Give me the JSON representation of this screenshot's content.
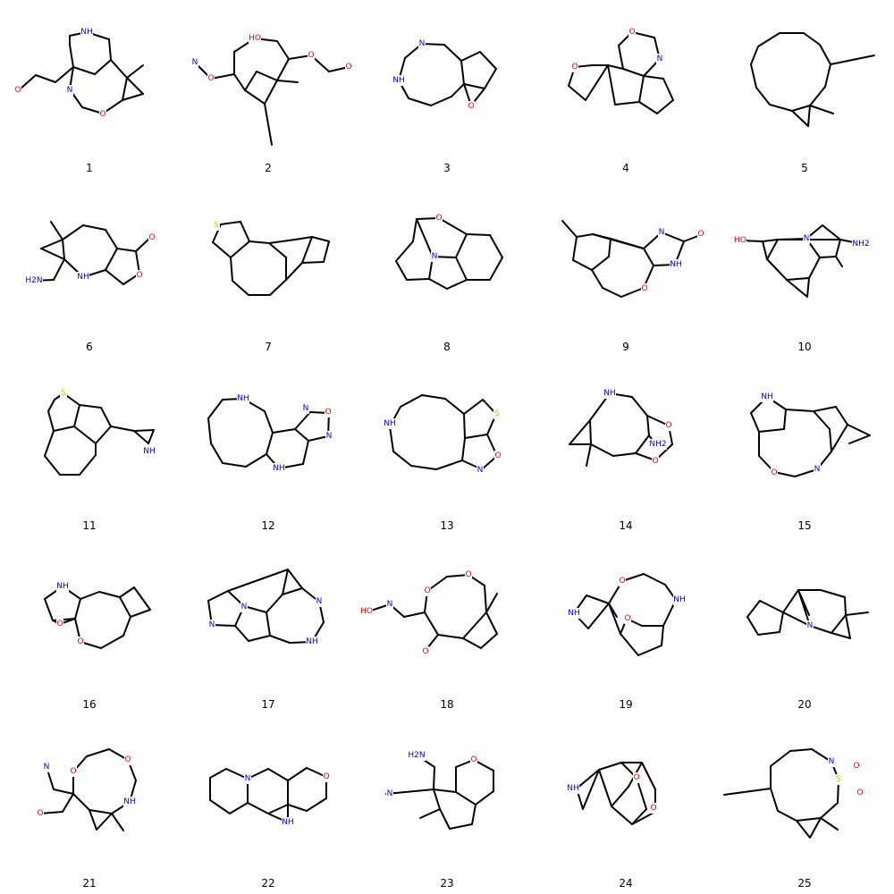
{
  "title": "",
  "molecules": [
    {
      "label": "1",
      "atoms": [
        {
          "t": "NH",
          "c": "N"
        },
        {
          "t": "O",
          "c": "O"
        },
        {
          "t": "N",
          "c": "N"
        },
        {
          "t": "O",
          "c": "O"
        }
      ]
    },
    {
      "label": "2",
      "atoms": [
        {
          "t": "HO",
          "c": "O"
        },
        {
          "t": "N",
          "c": "N"
        },
        {
          "t": "O",
          "c": "O"
        },
        {
          "t": "O",
          "c": "O"
        },
        {
          "t": "O",
          "c": "O"
        }
      ]
    },
    {
      "label": "3",
      "atoms": [
        {
          "t": "N",
          "c": "N"
        },
        {
          "t": "NH",
          "c": "N"
        },
        {
          "t": "O",
          "c": "O"
        }
      ]
    },
    {
      "label": "4",
      "atoms": [
        {
          "t": "O",
          "c": "O"
        },
        {
          "t": "N",
          "c": "N"
        },
        {
          "t": "O",
          "c": "O"
        }
      ]
    },
    {
      "label": "5",
      "atoms": []
    },
    {
      "label": "6",
      "atoms": [
        {
          "t": "O",
          "c": "O"
        },
        {
          "t": "O",
          "c": "O"
        },
        {
          "t": "NH",
          "c": "N"
        },
        {
          "t": "H2N",
          "c": "N"
        }
      ]
    },
    {
      "label": "7",
      "atoms": [
        {
          "t": "S",
          "c": "S"
        }
      ]
    },
    {
      "label": "8",
      "atoms": [
        {
          "t": "O",
          "c": "O"
        },
        {
          "t": "N",
          "c": "N"
        }
      ]
    },
    {
      "label": "9",
      "atoms": [
        {
          "t": "N",
          "c": "N"
        },
        {
          "t": "O",
          "c": "O"
        },
        {
          "t": "NH",
          "c": "N"
        },
        {
          "t": "O",
          "c": "O"
        }
      ]
    },
    {
      "label": "10",
      "atoms": [
        {
          "t": "HO",
          "c": "O"
        },
        {
          "t": "N",
          "c": "N"
        },
        {
          "t": "NH2",
          "c": "N"
        }
      ]
    },
    {
      "label": "11",
      "atoms": [
        {
          "t": "S",
          "c": "S"
        },
        {
          "t": "NH",
          "c": "N"
        }
      ]
    },
    {
      "label": "12",
      "atoms": [
        {
          "t": "NH",
          "c": "N"
        },
        {
          "t": "N",
          "c": "N"
        },
        {
          "t": "O",
          "c": "O"
        },
        {
          "t": "N",
          "c": "N"
        },
        {
          "t": "NH",
          "c": "N"
        }
      ]
    },
    {
      "label": "13",
      "atoms": [
        {
          "t": "NH",
          "c": "N"
        },
        {
          "t": "S",
          "c": "S"
        },
        {
          "t": "N",
          "c": "N"
        },
        {
          "t": "O",
          "c": "O"
        }
      ]
    },
    {
      "label": "14",
      "atoms": [
        {
          "t": "NH",
          "c": "N"
        },
        {
          "t": "O",
          "c": "O"
        },
        {
          "t": "NH2",
          "c": "N"
        },
        {
          "t": "O",
          "c": "O"
        }
      ]
    },
    {
      "label": "15",
      "atoms": [
        {
          "t": "NH",
          "c": "N"
        },
        {
          "t": "O",
          "c": "O"
        },
        {
          "t": "N",
          "c": "N"
        }
      ]
    },
    {
      "label": "16",
      "atoms": [
        {
          "t": "NH",
          "c": "N"
        },
        {
          "t": "O",
          "c": "O"
        },
        {
          "t": "O",
          "c": "O"
        }
      ]
    },
    {
      "label": "17",
      "atoms": [
        {
          "t": "N",
          "c": "N"
        },
        {
          "t": "N",
          "c": "N"
        },
        {
          "t": "N",
          "c": "N"
        },
        {
          "t": "NH",
          "c": "N"
        }
      ]
    },
    {
      "label": "18",
      "atoms": [
        {
          "t": "O",
          "c": "O"
        },
        {
          "t": "HO",
          "c": "O"
        },
        {
          "t": "N",
          "c": "N"
        },
        {
          "t": "O",
          "c": "O"
        },
        {
          "t": "O",
          "c": "O"
        }
      ]
    },
    {
      "label": "19",
      "atoms": [
        {
          "t": "O",
          "c": "O"
        },
        {
          "t": "NH",
          "c": "N"
        },
        {
          "t": "NH",
          "c": "N"
        },
        {
          "t": "O",
          "c": "O"
        }
      ]
    },
    {
      "label": "20",
      "atoms": [
        {
          "t": "N",
          "c": "N"
        }
      ]
    },
    {
      "label": "21",
      "atoms": [
        {
          "t": "O",
          "c": "O"
        },
        {
          "t": "N",
          "c": "N"
        },
        {
          "t": "O",
          "c": "O"
        },
        {
          "t": "NH",
          "c": "N"
        },
        {
          "t": "O",
          "c": "O"
        }
      ]
    },
    {
      "label": "22",
      "atoms": [
        {
          "t": "N",
          "c": "N"
        },
        {
          "t": "O",
          "c": "O"
        },
        {
          "t": "NH",
          "c": "N"
        }
      ]
    },
    {
      "label": "23",
      "atoms": [
        {
          "t": "H2N",
          "c": "N"
        },
        {
          "t": "O",
          "c": "O"
        },
        {
          "t": "N",
          "c": "N"
        }
      ]
    },
    {
      "label": "24",
      "atoms": [
        {
          "t": "NH",
          "c": "N"
        },
        {
          "t": "O",
          "c": "O"
        },
        {
          "t": "O",
          "c": "O"
        }
      ]
    },
    {
      "label": "25",
      "atoms": [
        {
          "t": "N",
          "c": "N"
        },
        {
          "t": "S",
          "c": "S"
        },
        {
          "t": "O",
          "c": "O"
        },
        {
          "t": "O",
          "c": "O"
        }
      ]
    }
  ],
  "colors": {
    "C": "#000000",
    "N": "#0000ff",
    "O": "#ff0000",
    "S": "#cccc00"
  }
}
